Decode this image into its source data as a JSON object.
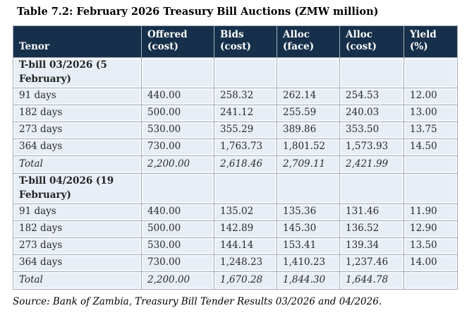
{
  "title": "Table 7.2: February 2026 Treasury Bill Auctions (ZMW million)",
  "colors": {
    "header_bg": "#16304b",
    "row_bg": "#e8eef6",
    "border": "#a6aeb9",
    "header_text": "#ffffff",
    "body_text": "#2b2b2b"
  },
  "table": {
    "headers": [
      "Tenor",
      "Offered\n(cost)",
      "Bids\n(cost)",
      "Alloc\n(face)",
      "Alloc\n(cost)",
      "Yield\n(%)"
    ],
    "rows": [
      {
        "type": "section",
        "cells": [
          "T-bill 03/2026 (5 February)",
          "",
          "",
          "",
          "",
          ""
        ]
      },
      {
        "type": "data",
        "cells": [
          "91 days",
          "440.00",
          "258.32",
          "262.14",
          "254.53",
          "12.00"
        ]
      },
      {
        "type": "data",
        "cells": [
          "182 days",
          "500.00",
          "241.12",
          "255.59",
          "240.03",
          "13.00"
        ]
      },
      {
        "type": "data",
        "cells": [
          "273 days",
          "530.00",
          "355.29",
          "389.86",
          "353.50",
          "13.75"
        ]
      },
      {
        "type": "data",
        "cells": [
          "364 days",
          "730.00",
          "1,763.73",
          "1,801.52",
          "1,573.93",
          "14.50"
        ]
      },
      {
        "type": "total",
        "cells": [
          "Total",
          "2,200.00",
          "2,618.46",
          "2,709.11",
          "2,421.99",
          ""
        ]
      },
      {
        "type": "section",
        "cells": [
          "T-bill 04/2026 (19 February)",
          "",
          "",
          "",
          "",
          ""
        ]
      },
      {
        "type": "data",
        "cells": [
          "91 days",
          "440.00",
          "135.02",
          "135.36",
          "131.46",
          "11.90"
        ]
      },
      {
        "type": "data",
        "cells": [
          "182 days",
          "500.00",
          "142.89",
          "145.30",
          "136.52",
          "12.90"
        ]
      },
      {
        "type": "data",
        "cells": [
          "273 days",
          "530.00",
          "144.14",
          "153.41",
          "139.34",
          "13.50"
        ]
      },
      {
        "type": "data",
        "cells": [
          "364 days",
          "730.00",
          "1,248.23",
          "1,410.23",
          "1,237.46",
          "14.00"
        ]
      },
      {
        "type": "total",
        "cells": [
          "Total",
          "2,200.00",
          "1,670.28",
          "1,844.30",
          "1,644.78",
          ""
        ]
      }
    ]
  },
  "source": "Source: Bank of Zambia, Treasury Bill Tender Results 03/2026 and 04/2026."
}
